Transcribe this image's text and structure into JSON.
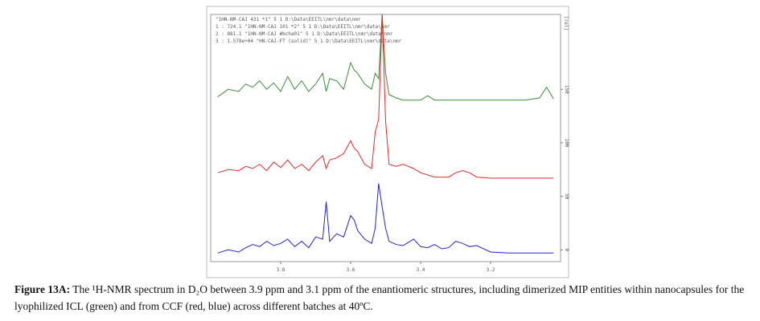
{
  "chart_data": {
    "type": "line",
    "header_lines": [
      "\"1HN-NM-CAJ 431 *1\"  5  1  D:\\Data\\EEITL\\nmr\\data\\nmr",
      "1 : 724.1  \"1HN-NM-CAJ 101 *2\"  5  1  D:\\Data\\EEITL\\nmr\\data\\nmr",
      "2 : 881.1  \"1HN-NM-CAJ #bcha01\"  5  1  D:\\Data\\EEITL\\nmr\\data\\nmr",
      "3 : 1.578e+04  \"HN-CAJ-FT (solid)\"  5  1  D:\\Data\\EEITL\\nmr\\data\\nmr"
    ],
    "y_label": "[rel]",
    "x": [
      3.98,
      3.95,
      3.92,
      3.9,
      3.88,
      3.86,
      3.84,
      3.82,
      3.8,
      3.78,
      3.76,
      3.74,
      3.72,
      3.7,
      3.68,
      3.67,
      3.66,
      3.64,
      3.62,
      3.6,
      3.59,
      3.58,
      3.56,
      3.54,
      3.53,
      3.52,
      3.51,
      3.5,
      3.49,
      3.47,
      3.45,
      3.42,
      3.4,
      3.38,
      3.36,
      3.34,
      3.32,
      3.3,
      3.28,
      3.26,
      3.24,
      3.2,
      3.15,
      3.1,
      3.06,
      3.04,
      3.02
    ],
    "series": [
      {
        "color": "#3b8f3b",
        "values": [
          143,
          150,
          148,
          155,
          152,
          158,
          150,
          156,
          148,
          162,
          150,
          158,
          148,
          155,
          165,
          148,
          160,
          158,
          150,
          175,
          168,
          165,
          155,
          150,
          165,
          160,
          220,
          165,
          145,
          142,
          140,
          140,
          140,
          144,
          140,
          140,
          140,
          140,
          140,
          140,
          140,
          140,
          140,
          140,
          142,
          152,
          141
        ]
      },
      {
        "color": "#e02a2a",
        "values": [
          72,
          75,
          74,
          78,
          76,
          80,
          74,
          82,
          77,
          84,
          76,
          80,
          74,
          82,
          88,
          76,
          84,
          86,
          90,
          102,
          95,
          92,
          80,
          76,
          110,
          122,
          220,
          120,
          80,
          78,
          80,
          76,
          72,
          70,
          68,
          68,
          68,
          72,
          74,
          72,
          68,
          67,
          67,
          67,
          67,
          67,
          67
        ]
      },
      {
        "color": "#2222d0",
        "values": [
          -3,
          0,
          -2,
          2,
          5,
          3,
          8,
          4,
          6,
          10,
          3,
          8,
          2,
          12,
          10,
          45,
          8,
          15,
          12,
          32,
          28,
          18,
          10,
          6,
          20,
          62,
          40,
          20,
          8,
          5,
          4,
          10,
          3,
          2,
          5,
          1,
          2,
          8,
          6,
          3,
          4,
          -2,
          -3,
          -3,
          -3,
          -3,
          -3
        ]
      }
    ],
    "xlim": [
      4.0,
      3.0
    ],
    "xticks": [
      3.8,
      3.6,
      3.4,
      3.2
    ],
    "ylim": [
      -11,
      220
    ],
    "yticks": [
      0,
      50,
      100,
      150
    ]
  },
  "caption": {
    "label": "Figure 13A:",
    "text": "The ¹H-NMR spectrum in D₂O between 3.9 ppm and 3.1 ppm of the enantiomeric structures, including dimerized MIP entities within nanocapsules for the lyophilized ICL (green) and from CCF (red, blue) across different batches at 40ºC."
  }
}
